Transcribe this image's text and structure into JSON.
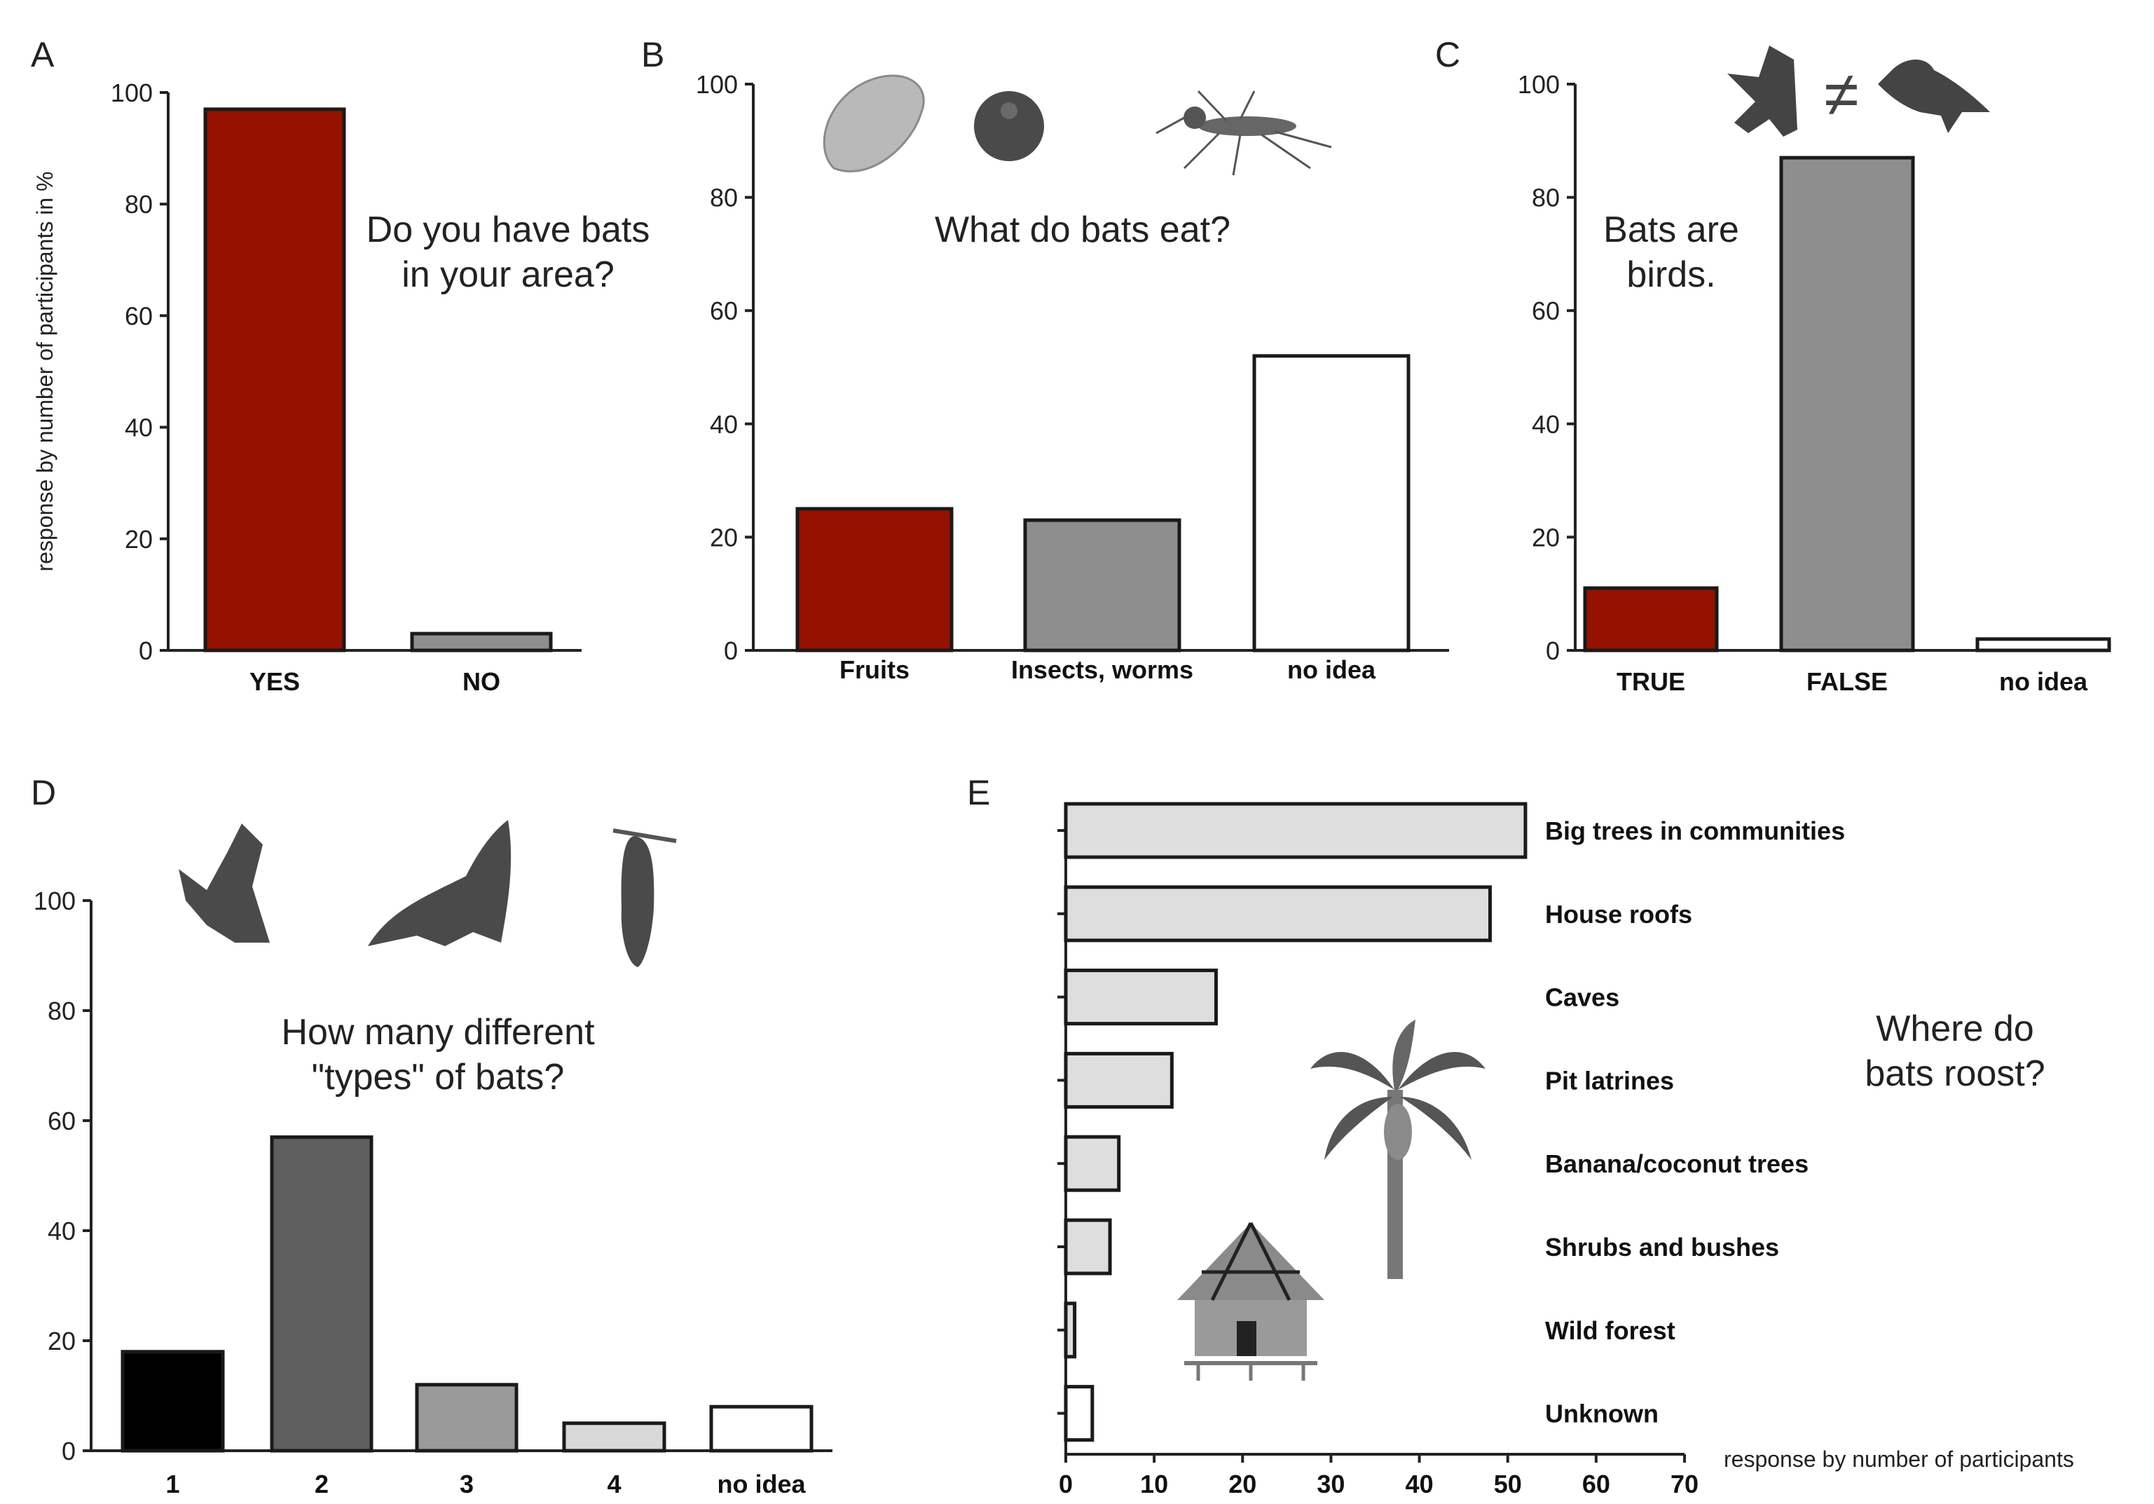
{
  "colors": {
    "red": "#941100",
    "gray": "#8e8e8e",
    "white": "#ffffff",
    "black": "#000000",
    "dark": "#5f5f5f",
    "mid": "#9a9a9a",
    "light": "#d8d8d8",
    "lightE": "#dedede"
  },
  "chart_data": [
    {
      "id": "A",
      "panel_label": "A",
      "type": "bar",
      "title": [
        "Do you have bats",
        "in your area?"
      ],
      "ylabel": "response by number of participants in %",
      "ylim": [
        0,
        100
      ],
      "yticks": [
        0,
        20,
        40,
        60,
        80,
        100
      ],
      "categories": [
        "YES",
        "NO"
      ],
      "values": [
        97,
        3
      ],
      "colors": [
        "red",
        "gray"
      ]
    },
    {
      "id": "B",
      "panel_label": "B",
      "type": "bar",
      "title": [
        "What do bats eat?"
      ],
      "icons": [
        "mango-icon",
        "berry-icon",
        "mosquito-icon"
      ],
      "ylim": [
        0,
        100
      ],
      "yticks": [
        0,
        20,
        40,
        60,
        80,
        100
      ],
      "categories": [
        "Fruits",
        "Insects, worms",
        "no idea"
      ],
      "values": [
        25,
        23,
        52
      ],
      "colors": [
        "red",
        "gray",
        "white"
      ]
    },
    {
      "id": "C",
      "panel_label": "C",
      "type": "bar",
      "title": [
        "Bats are",
        "birds."
      ],
      "icons": [
        "bat-icon",
        "not-equal-icon",
        "bird-icon"
      ],
      "not_equal_symbol": "≠",
      "ylim": [
        0,
        100
      ],
      "yticks": [
        0,
        20,
        40,
        60,
        80,
        100
      ],
      "categories": [
        "TRUE",
        "FALSE",
        "no idea"
      ],
      "values": [
        11,
        87,
        2
      ],
      "colors": [
        "red",
        "gray",
        "white"
      ]
    },
    {
      "id": "D",
      "panel_label": "D",
      "type": "bar",
      "title": [
        "How many different",
        "\"types\" of bats?"
      ],
      "icons": [
        "flying-bat-icon",
        "gliding-bat-icon",
        "hanging-bat-icon"
      ],
      "ylim": [
        0,
        100
      ],
      "yticks": [
        0,
        20,
        40,
        60,
        80,
        100
      ],
      "categories": [
        "1",
        "2",
        "3",
        "4",
        "no idea"
      ],
      "values": [
        18,
        57,
        12,
        5,
        8
      ],
      "colors": [
        "black",
        "dark",
        "mid",
        "light",
        "white"
      ]
    },
    {
      "id": "E",
      "panel_label": "E",
      "type": "barh",
      "title": [
        "Where do",
        "bats roost?"
      ],
      "icons": [
        "banana-tree-icon",
        "hut-icon"
      ],
      "xlabel": "response by number of participants",
      "xlim": [
        0,
        70
      ],
      "xticks": [
        0,
        10,
        20,
        30,
        40,
        50,
        60,
        70
      ],
      "categories": [
        "Big trees in communities",
        "House roofs",
        "Caves",
        "Pit latrines",
        "Banana/coconut trees",
        "Shrubs and bushes",
        "Wild forest",
        "Unknown"
      ],
      "values": [
        52,
        48,
        17,
        12,
        6,
        5,
        1,
        3
      ],
      "colors": [
        "lightE",
        "lightE",
        "lightE",
        "lightE",
        "lightE",
        "lightE",
        "lightE",
        "white"
      ]
    }
  ]
}
